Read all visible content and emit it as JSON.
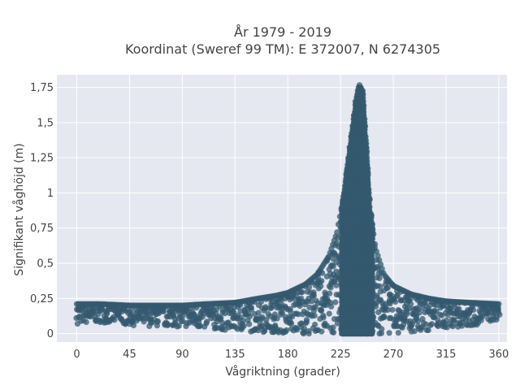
{
  "chart_data": {
    "type": "scatter",
    "title_lines": [
      "År 1979 - 2019",
      "Koordinat (Sweref 99 TM): E 372007, N 6274305"
    ],
    "xlabel": "Vågriktning (grader)",
    "ylabel": "Signifikant våghöjd (m)",
    "xlim": [
      -17,
      367
    ],
    "ylim": [
      -0.06,
      1.84
    ],
    "x_ticks": [
      {
        "value": 0,
        "label": "0"
      },
      {
        "value": 45,
        "label": "45"
      },
      {
        "value": 90,
        "label": "90"
      },
      {
        "value": 135,
        "label": "135"
      },
      {
        "value": 180,
        "label": "180"
      },
      {
        "value": 225,
        "label": "225"
      },
      {
        "value": 270,
        "label": "270"
      },
      {
        "value": 315,
        "label": "315"
      },
      {
        "value": 360,
        "label": "360"
      }
    ],
    "y_ticks": [
      {
        "value": 0,
        "label": "0"
      },
      {
        "value": 0.25,
        "label": "0,25"
      },
      {
        "value": 0.5,
        "label": "0,5"
      },
      {
        "value": 0.75,
        "label": "0,75"
      },
      {
        "value": 1,
        "label": "1"
      },
      {
        "value": 1.25,
        "label": "1,25"
      },
      {
        "value": 1.5,
        "label": "1,5"
      },
      {
        "value": 1.75,
        "label": "1,75"
      }
    ],
    "grid": true,
    "colors": {
      "marker": "#34596f",
      "plot_bg": "#e5e8f0",
      "grid": "#ffffff"
    },
    "envelope": [
      {
        "x": 0,
        "min": 0.07,
        "max": 0.21
      },
      {
        "x": 20,
        "min": 0.08,
        "max": 0.21
      },
      {
        "x": 45,
        "min": 0.06,
        "max": 0.2
      },
      {
        "x": 70,
        "min": 0.05,
        "max": 0.2
      },
      {
        "x": 90,
        "min": 0.05,
        "max": 0.2
      },
      {
        "x": 110,
        "min": 0.03,
        "max": 0.21
      },
      {
        "x": 135,
        "min": 0.02,
        "max": 0.22
      },
      {
        "x": 155,
        "min": 0.01,
        "max": 0.25
      },
      {
        "x": 170,
        "min": 0.01,
        "max": 0.27
      },
      {
        "x": 180,
        "min": 0.0,
        "max": 0.29
      },
      {
        "x": 195,
        "min": 0.0,
        "max": 0.35
      },
      {
        "x": 205,
        "min": 0.0,
        "max": 0.42
      },
      {
        "x": 215,
        "min": 0.0,
        "max": 0.55
      },
      {
        "x": 222,
        "min": 0.0,
        "max": 0.72
      },
      {
        "x": 228,
        "min": 0.0,
        "max": 1.0
      },
      {
        "x": 234,
        "min": 0.0,
        "max": 1.4
      },
      {
        "x": 238,
        "min": 0.0,
        "max": 1.65
      },
      {
        "x": 241,
        "min": 0.0,
        "max": 1.77
      },
      {
        "x": 244,
        "min": 0.0,
        "max": 1.72
      },
      {
        "x": 247,
        "min": 0.0,
        "max": 1.35
      },
      {
        "x": 250,
        "min": 0.0,
        "max": 0.9
      },
      {
        "x": 255,
        "min": 0.0,
        "max": 0.6
      },
      {
        "x": 262,
        "min": 0.0,
        "max": 0.42
      },
      {
        "x": 270,
        "min": 0.0,
        "max": 0.34
      },
      {
        "x": 285,
        "min": 0.01,
        "max": 0.28
      },
      {
        "x": 300,
        "min": 0.02,
        "max": 0.25
      },
      {
        "x": 315,
        "min": 0.04,
        "max": 0.23
      },
      {
        "x": 335,
        "min": 0.05,
        "max": 0.22
      },
      {
        "x": 360,
        "min": 0.1,
        "max": 0.21
      }
    ]
  }
}
